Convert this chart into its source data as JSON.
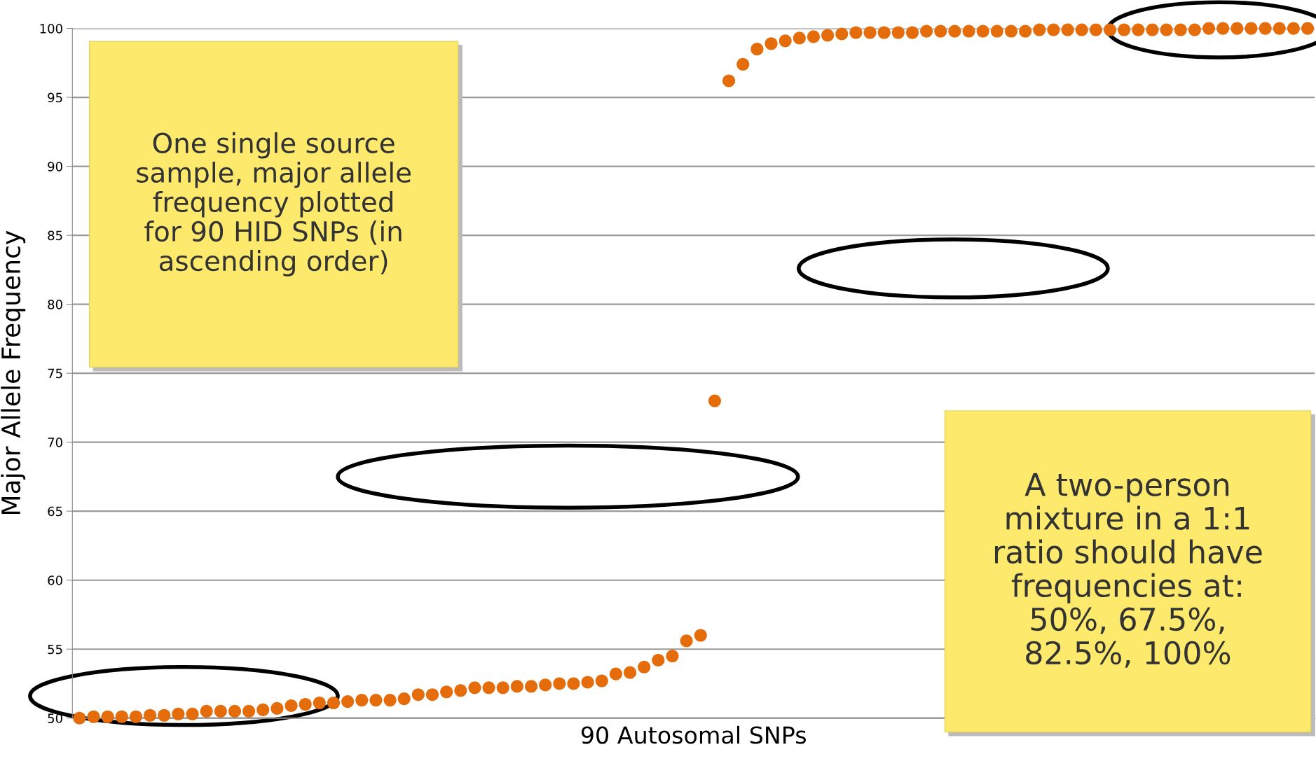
{
  "chart_data": {
    "type": "scatter",
    "xlabel": "90 Autosomal SNPs",
    "ylabel": "Major Allele Frequency",
    "categories": [
      null,
      null,
      null,
      null,
      null,
      null,
      null,
      null,
      null,
      null,
      null,
      null,
      null,
      null,
      null,
      null,
      null,
      null,
      null,
      null,
      null,
      null,
      null,
      null,
      null,
      null,
      null,
      null,
      null,
      null,
      null,
      null,
      null,
      null,
      null,
      null,
      null,
      null,
      null,
      null,
      null,
      null,
      null,
      null,
      null,
      null,
      null,
      null,
      null,
      null,
      null,
      null,
      null,
      null,
      null,
      null,
      null,
      null,
      null,
      null,
      null,
      null,
      null,
      null,
      null,
      null,
      null,
      null,
      null,
      null,
      null,
      null,
      null,
      null,
      null,
      null,
      null,
      null,
      null,
      null,
      null,
      null,
      null,
      null,
      null,
      null,
      null,
      null
    ],
    "series": [
      {
        "color": "#e46c0a",
        "values": [
          50.0,
          50.1,
          50.1,
          50.1,
          50.1,
          50.2,
          50.2,
          50.3,
          50.3,
          50.5,
          50.5,
          50.5,
          50.5,
          50.6,
          50.7,
          50.9,
          51.0,
          51.1,
          51.1,
          51.2,
          51.3,
          51.3,
          51.3,
          51.4,
          51.7,
          51.7,
          51.9,
          52.0,
          52.2,
          52.2,
          52.2,
          52.3,
          52.3,
          52.4,
          52.5,
          52.5,
          52.6,
          52.7,
          53.2,
          53.3,
          53.7,
          54.2,
          54.5,
          55.6,
          56.0,
          73.0,
          96.2,
          97.4,
          98.5,
          98.9,
          99.1,
          99.3,
          99.4,
          99.5,
          99.6,
          99.7,
          99.7,
          99.7,
          99.7,
          99.7,
          99.8,
          99.8,
          99.8,
          99.8,
          99.8,
          99.8,
          99.8,
          99.8,
          99.9,
          99.9,
          99.9,
          99.9,
          99.9,
          99.9,
          99.9,
          99.9,
          99.9,
          99.9,
          99.9,
          99.9,
          100.0,
          100.0,
          100.0,
          100.0,
          100.0,
          100.0,
          100.0,
          100.0
        ]
      }
    ],
    "ylim": [
      50,
      100
    ],
    "yticks": [
      50,
      55,
      60,
      65,
      70,
      75,
      80,
      85,
      90,
      95,
      100
    ],
    "grid": "y",
    "marker": "circle",
    "tick_labels": "y",
    "annotations": [
      "One single source\nsample, major allele\nfrequency plotted\nfor 90 HID SNPs (in\nascending order)",
      "A two-person\nmixture in a 1:1\nratio should have\nfrequencies at:\n50%, 67.5%,\n82.5%, 100%"
    ]
  }
}
